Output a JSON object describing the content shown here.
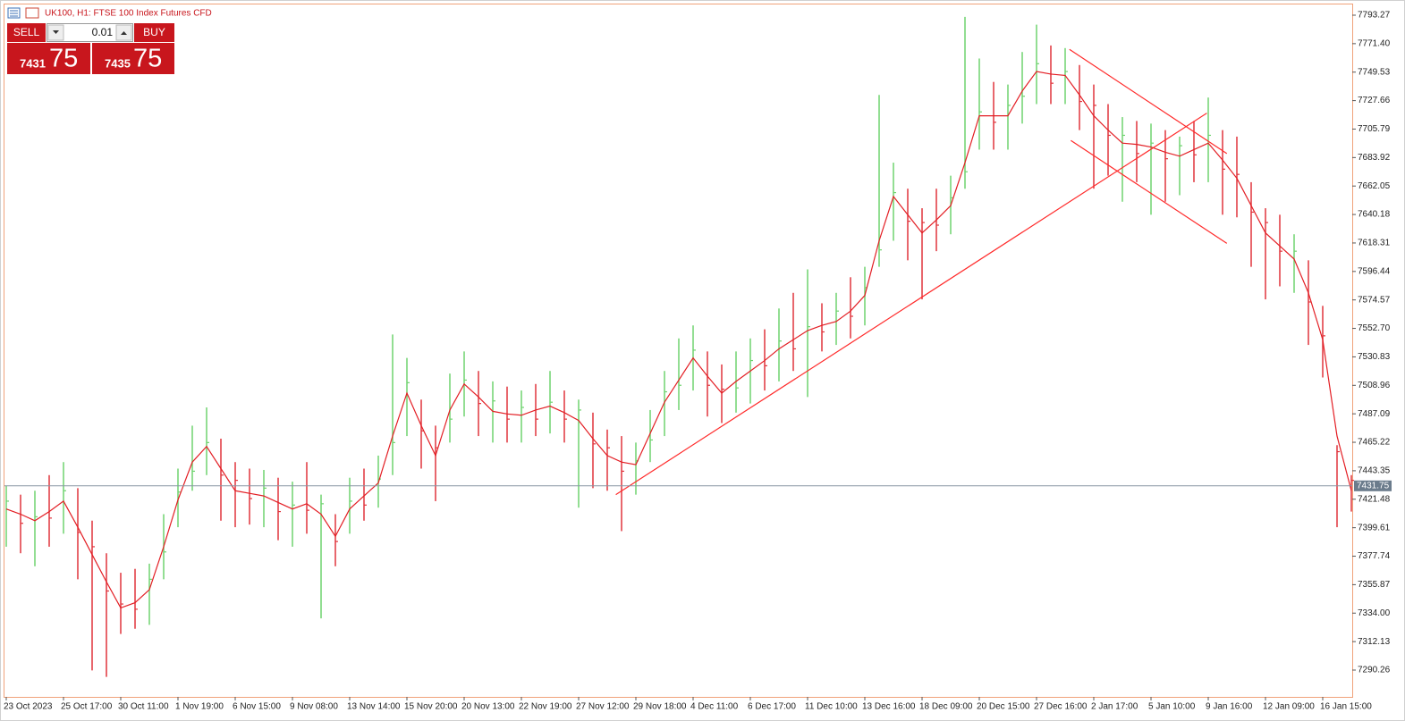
{
  "header": {
    "symbol_text": "UK100, H1:  FTSE 100 Index Futures CFD"
  },
  "trade_panel": {
    "sell_label": "SELL",
    "buy_label": "BUY",
    "lot": 0.01,
    "sell_price_main": 7431,
    "sell_price_big": 75,
    "buy_price_main": 7435,
    "buy_price_big": 75
  },
  "chart_data": {
    "type": "ohlc",
    "categories": [
      "23 Oct 2023",
      null,
      null,
      null,
      "25 Oct 17:00",
      null,
      null,
      null,
      "30 Oct 11:00",
      null,
      null,
      null,
      "1 Nov 19:00",
      null,
      null,
      null,
      "6 Nov 15:00",
      null,
      null,
      null,
      "9 Nov 08:00",
      null,
      null,
      null,
      "13 Nov 14:00",
      null,
      null,
      null,
      "15 Nov 20:00",
      null,
      null,
      null,
      "20 Nov 13:00",
      null,
      null,
      null,
      "22 Nov 19:00",
      null,
      null,
      null,
      "27 Nov 12:00",
      null,
      null,
      null,
      "29 Nov 18:00",
      null,
      null,
      null,
      "4 Dec 11:00",
      null,
      null,
      null,
      "6 Dec 17:00",
      null,
      null,
      null,
      "11 Dec 10:00",
      null,
      null,
      null,
      "13 Dec 16:00",
      null,
      null,
      null,
      "18 Dec 09:00",
      null,
      null,
      null,
      "20 Dec 15:00",
      null,
      null,
      null,
      "27 Dec 16:00",
      null,
      null,
      null,
      "2 Jan 17:00",
      null,
      null,
      null,
      "5 Jan 10:00",
      null,
      null,
      null,
      "9 Jan 16:00",
      null,
      null,
      null,
      "12 Jan 09:00",
      null,
      null,
      null,
      "16 Jan 15:00",
      null,
      null
    ],
    "high": [
      7432,
      7425,
      7428,
      7440,
      7450,
      7430,
      7405,
      7380,
      7365,
      7368,
      7372,
      7410,
      7445,
      7478,
      7492,
      7468,
      7450,
      7445,
      7444,
      7438,
      7435,
      7450,
      7425,
      7410,
      7438,
      7445,
      7455,
      7548,
      7530,
      7498,
      7478,
      7518,
      7535,
      7520,
      7512,
      7508,
      7505,
      7510,
      7520,
      7505,
      7498,
      7488,
      7475,
      7470,
      7465,
      7490,
      7520,
      7545,
      7555,
      7535,
      7525,
      7535,
      7545,
      7552,
      7568,
      7580,
      7598,
      7572,
      7580,
      7592,
      7600,
      7732,
      7680,
      7660,
      7645,
      7660,
      7670,
      7792,
      7760,
      7742,
      7740,
      7765,
      7786,
      7770,
      7768,
      7755,
      7740,
      7725,
      7715,
      7712,
      7710,
      7705,
      7700,
      7712,
      7730,
      7705,
      7700,
      7665,
      7645,
      7640,
      7625,
      7605,
      7570,
      7463,
      7440
    ],
    "low": [
      7385,
      7380,
      7370,
      7385,
      7395,
      7360,
      7290,
      7285,
      7318,
      7322,
      7325,
      7360,
      7400,
      7428,
      7440,
      7405,
      7400,
      7402,
      7400,
      7390,
      7385,
      7395,
      7330,
      7370,
      7395,
      7405,
      7415,
      7440,
      7470,
      7445,
      7420,
      7465,
      7485,
      7470,
      7465,
      7465,
      7465,
      7470,
      7472,
      7465,
      7415,
      7430,
      7428,
      7397,
      7425,
      7450,
      7470,
      7490,
      7505,
      7485,
      7480,
      7488,
      7495,
      7505,
      7512,
      7520,
      7500,
      7535,
      7540,
      7545,
      7555,
      7600,
      7620,
      7605,
      7575,
      7612,
      7625,
      7660,
      7690,
      7690,
      7690,
      7710,
      7725,
      7725,
      7725,
      7705,
      7660,
      7670,
      7650,
      7665,
      7640,
      7650,
      7655,
      7665,
      7665,
      7640,
      7638,
      7600,
      7575,
      7585,
      7580,
      7540,
      7515,
      7400,
      7412
    ],
    "close": [
      7420,
      7403,
      7408,
      7407,
      7428,
      7396,
      7385,
      7351,
      7341,
      7337,
      7360,
      7381,
      7427,
      7443,
      7465,
      7440,
      7436,
      7422,
      7430,
      7412,
      7417,
      7413,
      7418,
      7389,
      7420,
      7417,
      7437,
      7465,
      7511,
      7474,
      7461,
      7483,
      7513,
      7495,
      7497,
      7483,
      7492,
      7483,
      7496,
      7483,
      7490,
      7464,
      7461,
      7443,
      7451,
      7467,
      7504,
      7509,
      7536,
      7509,
      7506,
      7507,
      7528,
      7524,
      7543,
      7537,
      7554,
      7550,
      7566,
      7562,
      7584,
      7613,
      7657,
      7635,
      7634,
      7632,
      7653,
      7673,
      7719,
      7711,
      7724,
      7731,
      7756,
      7741,
      7750,
      7727,
      7724,
      7701,
      7701,
      7687,
      7695,
      7683,
      7693,
      7686,
      7701,
      7675,
      7671,
      7642,
      7634,
      7612,
      7612,
      7573,
      7547,
      7458,
      7436
    ],
    "up_color": "#6fd36f",
    "down_color": "#e0343c",
    "ma": {
      "color": "#e31e24",
      "values": [
        7414,
        7410,
        7405,
        7412,
        7420,
        7400,
        7379,
        7358,
        7338,
        7342,
        7352,
        7385,
        7421,
        7450,
        7462,
        7445,
        7428,
        7426,
        7424,
        7419,
        7414,
        7418,
        7410,
        7393,
        7414,
        7424,
        7434,
        7470,
        7503,
        7478,
        7455,
        7490,
        7510,
        7500,
        7489,
        7487,
        7486,
        7490,
        7493,
        7488,
        7482,
        7468,
        7455,
        7450,
        7448,
        7472,
        7496,
        7513,
        7530,
        7516,
        7503,
        7512,
        7520,
        7528,
        7537,
        7544,
        7551,
        7555,
        7558,
        7566,
        7578,
        7620,
        7654,
        7640,
        7626,
        7636,
        7647,
        7680,
        7716,
        7716,
        7716,
        7735,
        7750,
        7748,
        7747,
        7732,
        7716,
        7705,
        7695,
        7694,
        7692,
        7688,
        7685,
        7690,
        7695,
        7682,
        7668,
        7647,
        7626,
        7616,
        7606,
        7580,
        7544,
        7470,
        7428
      ]
    },
    "trendlines": [
      {
        "color": "#ff2a2a",
        "x": [
          42.6,
          83.9
        ],
        "y": [
          7425,
          7718
        ]
      },
      {
        "color": "#ff2a2a",
        "x": [
          74.3,
          85.3
        ],
        "y": [
          7767,
          7687
        ]
      },
      {
        "color": "#ff2a2a",
        "x": [
          74.4,
          85.3
        ],
        "y": [
          7697,
          7618
        ]
      }
    ],
    "current_price": 7431.75,
    "current_price_color": "#8896a3",
    "ylim": [
      7269.67,
      7801.5
    ],
    "yticks": [
      7793.27,
      {
        "value": 7771.4,
        "label": "7771.40"
      },
      7749.53,
      7727.66,
      7705.79,
      7683.92,
      7662.05,
      7640.18,
      7618.31,
      7596.44,
      7574.57,
      {
        "value": 7552.7,
        "label": "7552.70"
      },
      7530.83,
      7508.96,
      7487.09,
      7465.22,
      7443.35,
      7421.48,
      7399.61,
      7377.74,
      7355.87,
      {
        "value": 7334,
        "label": "7334.00"
      },
      7312.13,
      7290.26
    ]
  }
}
